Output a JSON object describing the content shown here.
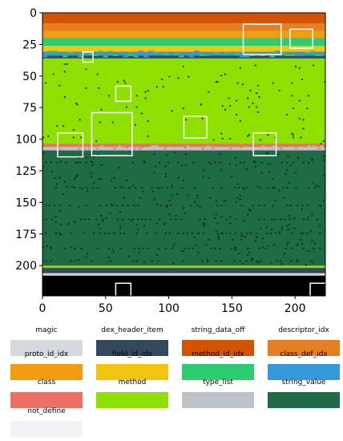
{
  "chart_data": {
    "type": "heatmap",
    "title": "",
    "xlabel": "",
    "ylabel": "",
    "xlim": [
      0,
      224
    ],
    "ylim": [
      224,
      0
    ],
    "x_ticks": [
      0,
      50,
      100,
      150,
      200
    ],
    "y_ticks": [
      0,
      25,
      50,
      75,
      100,
      125,
      150,
      175,
      200
    ],
    "x_tick_labels": [
      "0",
      "50",
      "100",
      "150",
      "200"
    ],
    "y_tick_labels": [
      "0",
      "25",
      "50",
      "75",
      "100",
      "125",
      "150",
      "175",
      "200"
    ],
    "legend_position": "bottom",
    "categories": [
      {
        "name": "magic",
        "color": "#d5d8dc"
      },
      {
        "name": "dex_header_item",
        "color": "#34495e"
      },
      {
        "name": "string_data_off",
        "color": "#d35400"
      },
      {
        "name": "descriptor_idx",
        "color": "#e67e22"
      },
      {
        "name": "proto_id_idx",
        "color": "#f39c12"
      },
      {
        "name": "field_id_idx",
        "color": "#f1c40f"
      },
      {
        "name": "method_id_idx",
        "color": "#2ecc71"
      },
      {
        "name": "class_def_idx",
        "color": "#3498db"
      },
      {
        "name": "class",
        "color": "#ec7063"
      },
      {
        "name": "method",
        "color": "#8ee000"
      },
      {
        "name": "type_list",
        "color": "#bdc3c7"
      },
      {
        "name": "string_value",
        "color": "#1e6b45"
      },
      {
        "name": "not_define",
        "color": "#f2f3f4"
      }
    ],
    "regions": [
      {
        "category": "string_data_off",
        "y_start": 0,
        "y_end": 8
      },
      {
        "category": "descriptor_idx",
        "y_start": 8,
        "y_end": 14
      },
      {
        "category": "proto_id_idx",
        "y_start": 14,
        "y_end": 20
      },
      {
        "category": "method_id_idx",
        "y_start": 20,
        "y_end": 26
      },
      {
        "category": "field_id_idx",
        "y_start": 26,
        "y_end": 31
      },
      {
        "category": "class_def_idx",
        "y_start": 31,
        "y_end": 34
      },
      {
        "category": "dex_header_item",
        "y_start": 34,
        "y_end": 36
      },
      {
        "category": "method",
        "y_start": 36,
        "y_end": 104
      },
      {
        "category": "class",
        "y_start": 104,
        "y_end": 106
      },
      {
        "category": "type_list",
        "y_start": 106,
        "y_end": 109
      },
      {
        "category": "string_value",
        "y_start": 109,
        "y_end": 200
      },
      {
        "category": "method",
        "y_start": 200,
        "y_end": 202
      },
      {
        "category": "dex_header_item",
        "y_start": 202,
        "y_end": 206
      },
      {
        "category": "magic",
        "y_start": 206,
        "y_end": 208
      }
    ],
    "highlight_boxes": [
      {
        "x": [
          159,
          189
        ],
        "y": [
          9,
          33
        ]
      },
      {
        "x": [
          196,
          214
        ],
        "y": [
          13,
          28
        ]
      },
      {
        "x": [
          32,
          40
        ],
        "y": [
          31,
          39
        ]
      },
      {
        "x": [
          58,
          70
        ],
        "y": [
          58,
          70
        ]
      },
      {
        "x": [
          39,
          71
        ],
        "y": [
          79,
          113
        ]
      },
      {
        "x": [
          112,
          130
        ],
        "y": [
          82,
          99
        ]
      },
      {
        "x": [
          12,
          32
        ],
        "y": [
          95,
          114
        ]
      },
      {
        "x": [
          167,
          185
        ],
        "y": [
          95,
          113
        ]
      },
      {
        "x": [
          58,
          70
        ],
        "y": [
          214,
          226
        ]
      },
      {
        "x": [
          212,
          226
        ],
        "y": [
          214,
          226
        ]
      }
    ]
  }
}
